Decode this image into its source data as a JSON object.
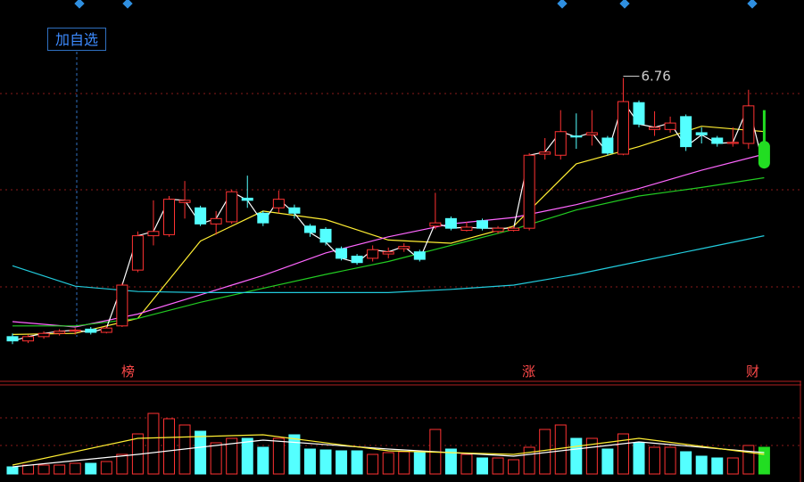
{
  "toolbar": {
    "button": "加自选"
  },
  "chart_data": {
    "type": "candlestick",
    "open": [
      4.35,
      4.31,
      4.35,
      4.38,
      4.4,
      4.42,
      4.39,
      4.45,
      4.97,
      5.29,
      5.3,
      5.6,
      5.55,
      5.4,
      5.42,
      5.64,
      5.5,
      5.55,
      5.55,
      5.38,
      5.35,
      5.17,
      5.1,
      5.08,
      5.12,
      5.17,
      5.14,
      5.38,
      5.45,
      5.34,
      5.43,
      5.33,
      5.34,
      5.36,
      6.05,
      6.04,
      6.22,
      6.23,
      6.2,
      6.05,
      6.53,
      6.28,
      6.28,
      6.4,
      6.25,
      6.2,
      6.15,
      6.15,
      6.17
    ],
    "close": [
      4.31,
      4.35,
      4.38,
      4.4,
      4.41,
      4.39,
      4.43,
      4.83,
      5.29,
      5.33,
      5.63,
      5.62,
      5.4,
      5.45,
      5.7,
      5.62,
      5.41,
      5.63,
      5.5,
      5.32,
      5.23,
      5.08,
      5.04,
      5.16,
      5.14,
      5.19,
      5.07,
      5.41,
      5.36,
      5.37,
      5.36,
      5.36,
      5.36,
      6.04,
      6.07,
      6.26,
      6.21,
      6.25,
      6.06,
      6.54,
      6.33,
      6.3,
      6.34,
      6.12,
      6.23,
      6.15,
      6.16,
      6.5,
      5.92
    ],
    "high": [
      4.38,
      4.37,
      4.4,
      4.42,
      4.43,
      4.44,
      4.45,
      4.85,
      5.33,
      5.62,
      5.66,
      5.8,
      5.57,
      5.52,
      5.72,
      5.85,
      5.52,
      5.71,
      5.58,
      5.4,
      5.37,
      5.19,
      5.12,
      5.2,
      5.18,
      5.22,
      5.16,
      5.69,
      5.47,
      5.42,
      5.45,
      5.38,
      5.38,
      6.06,
      6.2,
      6.46,
      6.43,
      6.46,
      6.22,
      6.76,
      6.55,
      6.45,
      6.4,
      6.42,
      6.3,
      6.22,
      6.3,
      6.65,
      6.46
    ],
    "low": [
      4.28,
      4.29,
      4.33,
      4.36,
      4.37,
      4.37,
      4.38,
      4.44,
      4.95,
      5.2,
      5.28,
      5.45,
      5.38,
      5.3,
      5.4,
      5.55,
      5.38,
      5.5,
      5.45,
      5.28,
      5.2,
      5.06,
      5.02,
      5.05,
      5.08,
      5.14,
      5.05,
      5.35,
      5.34,
      5.33,
      5.34,
      5.31,
      5.33,
      5.34,
      6.0,
      6.0,
      6.1,
      6.13,
      6.04,
      6.04,
      6.3,
      6.22,
      6.25,
      6.08,
      6.15,
      6.12,
      6.12,
      6.1,
      5.92
    ],
    "up_color": "#ff3232",
    "down_color": "#54ffff",
    "flat_color": "#ffffff",
    "last_color": "#22dd22",
    "ylim": [
      4.0,
      7.42
    ],
    "high_label": "6.76",
    "close_line_color": "#ffffff",
    "ma_lines": [
      {
        "color": "#ffee33",
        "x": [
          0,
          4,
          8,
          12,
          16,
          20,
          24,
          28,
          32,
          36,
          40,
          44,
          48
        ],
        "values": [
          4.37,
          4.38,
          4.52,
          5.24,
          5.52,
          5.44,
          5.25,
          5.22,
          5.38,
          5.96,
          6.12,
          6.31,
          6.26
        ]
      },
      {
        "color": "#ff66ff",
        "x": [
          0,
          4,
          8,
          12,
          16,
          20,
          24,
          28,
          32,
          36,
          40,
          44,
          48
        ],
        "values": [
          4.49,
          4.44,
          4.56,
          4.74,
          4.92,
          5.13,
          5.28,
          5.4,
          5.46,
          5.58,
          5.73,
          5.9,
          6.05
        ]
      },
      {
        "color": "#22cc22",
        "x": [
          0,
          4,
          8,
          12,
          16,
          20,
          24,
          28,
          32,
          36,
          40,
          44,
          48
        ],
        "values": [
          4.45,
          4.45,
          4.52,
          4.67,
          4.8,
          4.93,
          5.05,
          5.2,
          5.35,
          5.53,
          5.66,
          5.74,
          5.83
        ]
      },
      {
        "color": "#22ccdd",
        "x": [
          0,
          4,
          8,
          12,
          16,
          20,
          24,
          28,
          32,
          36,
          40,
          44,
          48
        ],
        "values": [
          5.01,
          4.82,
          4.77,
          4.76,
          4.76,
          4.76,
          4.76,
          4.79,
          4.83,
          4.93,
          5.05,
          5.17,
          5.29
        ]
      }
    ],
    "volume": {
      "values": [
        8,
        10,
        10,
        10,
        12,
        12,
        14,
        22,
        45,
        68,
        62,
        55,
        48,
        35,
        40,
        40,
        30,
        40,
        44,
        28,
        27,
        26,
        26,
        22,
        24,
        25,
        24,
        50,
        28,
        22,
        18,
        18,
        16,
        30,
        50,
        55,
        40,
        40,
        28,
        45,
        35,
        30,
        30,
        25,
        20,
        18,
        18,
        32,
        30
      ],
      "ylim": [
        0,
        100
      ],
      "lines": [
        {
          "color": "#ffffff",
          "x": [
            0,
            8,
            16,
            24,
            32,
            40,
            48
          ],
          "values": [
            8,
            22,
            38,
            28,
            20,
            36,
            24
          ]
        },
        {
          "color": "#ffee33",
          "x": [
            0,
            8,
            16,
            24,
            32,
            40,
            48
          ],
          "values": [
            10,
            40,
            44,
            26,
            22,
            40,
            22
          ]
        }
      ]
    },
    "events": [
      {
        "label": "榜"
      },
      {
        "label": "涨"
      },
      {
        "label": "财"
      }
    ]
  }
}
